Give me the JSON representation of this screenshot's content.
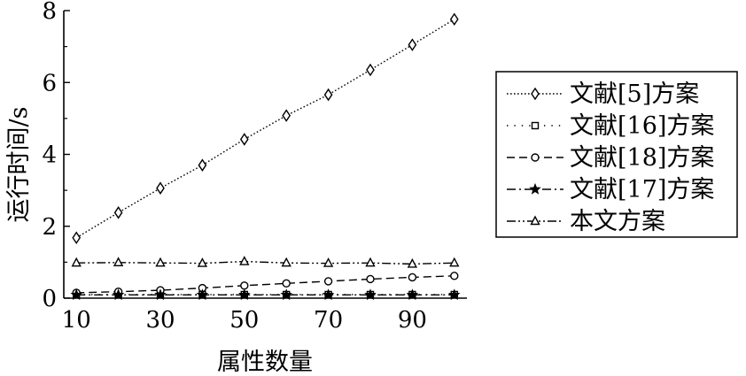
{
  "chart_data": {
    "type": "line",
    "xlabel": "属性数量",
    "ylabel": "运行时间/s",
    "x": [
      10,
      20,
      30,
      40,
      50,
      60,
      70,
      80,
      90,
      100
    ],
    "xticks": [
      10,
      30,
      50,
      70,
      90
    ],
    "yticks": [
      0,
      2,
      4,
      6,
      8
    ],
    "xlim": [
      7,
      103
    ],
    "ylim": [
      0,
      8
    ],
    "grid": false,
    "legend_position": "right",
    "series": [
      {
        "name": "文献[5]方案",
        "marker": "diamond",
        "dash": "dotted",
        "values": [
          1.68,
          2.38,
          3.06,
          3.7,
          4.42,
          5.08,
          5.66,
          6.35,
          7.05,
          7.76
        ]
      },
      {
        "name": "文献[16]方案",
        "marker": "square",
        "dash": "sparse-dotted",
        "values": [
          0.1,
          0.1,
          0.1,
          0.1,
          0.1,
          0.1,
          0.1,
          0.1,
          0.1,
          0.1
        ]
      },
      {
        "name": "文献[18]方案",
        "marker": "circle",
        "dash": "dashed",
        "values": [
          0.15,
          0.18,
          0.22,
          0.28,
          0.35,
          0.41,
          0.47,
          0.53,
          0.58,
          0.62
        ]
      },
      {
        "name": "文献[17]方案",
        "marker": "star",
        "dash": "dash-dot",
        "values": [
          0.09,
          0.09,
          0.09,
          0.09,
          0.09,
          0.09,
          0.09,
          0.09,
          0.09,
          0.09
        ]
      },
      {
        "name": "本文方案",
        "marker": "triangle",
        "dash": "dash-dot-dot",
        "values": [
          0.98,
          0.99,
          0.98,
          0.97,
          1.02,
          0.98,
          0.97,
          0.98,
          0.95,
          0.98
        ]
      }
    ]
  }
}
